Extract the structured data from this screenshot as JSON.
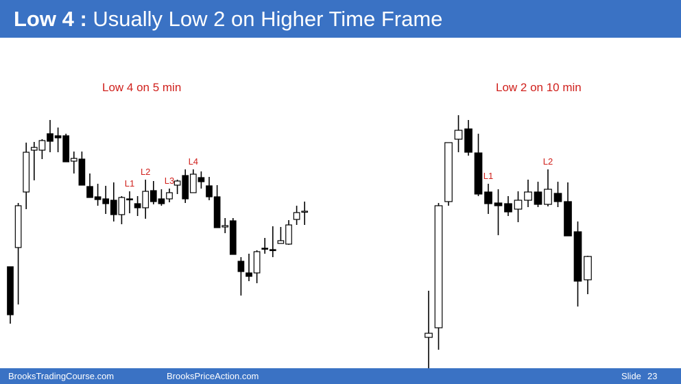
{
  "slide": {
    "title_bold": "Low 4 :",
    "title_rest": "Usually Low 2 on Higher Time Frame",
    "footer_left": "BrooksTradingCourse.com",
    "footer_center": "BrooksPriceAction.com",
    "footer_slide": "Slide",
    "footer_number": "23"
  },
  "colors": {
    "header": "#3a72c4",
    "annotation": "#d0201c",
    "bear_bar": "#000000",
    "bull_bar": "#ffffff"
  },
  "chart_data": [
    {
      "type": "candlestick",
      "title": "Low 4 on 5 min",
      "bars": [
        {
          "o": 389,
          "h": 434,
          "l": 472,
          "c": 459
        },
        {
          "o": 361,
          "h": 296,
          "l": 444,
          "c": 300
        },
        {
          "o": 280,
          "h": 208,
          "l": 305,
          "c": 222
        },
        {
          "o": 219,
          "h": 207,
          "l": 263,
          "c": 215
        },
        {
          "o": 219,
          "h": 203,
          "l": 232,
          "c": 205
        },
        {
          "o": 195,
          "h": 175,
          "l": 222,
          "c": 206
        },
        {
          "o": 198,
          "h": 186,
          "l": 222,
          "c": 201
        },
        {
          "o": 198,
          "h": 195,
          "l": 235,
          "c": 236
        },
        {
          "o": 235,
          "h": 221,
          "l": 253,
          "c": 231
        },
        {
          "o": 232,
          "h": 221,
          "l": 268,
          "c": 270
        },
        {
          "o": 272,
          "h": 253,
          "l": 285,
          "c": 288
        },
        {
          "o": 287,
          "h": 268,
          "l": 300,
          "c": 291
        },
        {
          "o": 290,
          "h": 271,
          "l": 312,
          "c": 297
        },
        {
          "o": 292,
          "h": 266,
          "l": 323,
          "c": 313
        },
        {
          "o": 313,
          "h": 286,
          "l": 327,
          "c": 288
        },
        {
          "o": 290,
          "h": 279,
          "l": 311,
          "c": 291
        },
        {
          "o": 297,
          "h": 286,
          "l": 315,
          "c": 303
        },
        {
          "o": 303,
          "h": 262,
          "l": 319,
          "c": 279
        },
        {
          "o": 278,
          "h": 264,
          "l": 298,
          "c": 294
        },
        {
          "o": 290,
          "h": 276,
          "l": 300,
          "c": 297
        },
        {
          "o": 290,
          "h": 275,
          "l": 295,
          "c": 281
        },
        {
          "o": 270,
          "h": 262,
          "l": 283,
          "c": 264
        },
        {
          "o": 256,
          "h": 247,
          "l": 296,
          "c": 290
        },
        {
          "o": 281,
          "h": 247,
          "l": 281,
          "c": 254
        },
        {
          "o": 259,
          "h": 250,
          "l": 275,
          "c": 265
        },
        {
          "o": 271,
          "h": 258,
          "l": 292,
          "c": 287
        },
        {
          "o": 287,
          "h": 270,
          "l": 316,
          "c": 332
        },
        {
          "o": 331,
          "h": 318,
          "l": 340,
          "c": 329
        },
        {
          "o": 322,
          "h": 318,
          "l": 365,
          "c": 371
        },
        {
          "o": 381,
          "h": 375,
          "l": 431,
          "c": 396
        },
        {
          "o": 398,
          "h": 370,
          "l": 410,
          "c": 403
        },
        {
          "o": 398,
          "h": 365,
          "l": 413,
          "c": 367
        },
        {
          "o": 362,
          "h": 347,
          "l": 370,
          "c": 362
        },
        {
          "o": 364,
          "h": 330,
          "l": 375,
          "c": 364
        },
        {
          "o": 355,
          "h": 331,
          "l": 354,
          "c": 351
        },
        {
          "o": 356,
          "h": 321,
          "l": 357,
          "c": 328
        },
        {
          "o": 320,
          "h": 300,
          "l": 328,
          "c": 310
        },
        {
          "o": 309,
          "h": 294,
          "l": 328,
          "c": 308
        }
      ],
      "labels": [
        {
          "text": "L1",
          "bar": 15
        },
        {
          "text": "L2",
          "bar": 17
        },
        {
          "text": "L3",
          "bar": 20
        },
        {
          "text": "L4",
          "bar": 23
        }
      ]
    },
    {
      "type": "candlestick",
      "title": "Low 2 on 10 min",
      "bars": [
        {
          "o": 492,
          "h": 424,
          "l": 557,
          "c": 486
        },
        {
          "o": 478,
          "h": 296,
          "l": 510,
          "c": 300
        },
        {
          "o": 294,
          "h": 208,
          "l": 300,
          "c": 208
        },
        {
          "o": 203,
          "h": 168,
          "l": 222,
          "c": 190
        },
        {
          "o": 188,
          "h": 175,
          "l": 227,
          "c": 222
        },
        {
          "o": 223,
          "h": 195,
          "l": 286,
          "c": 283
        },
        {
          "o": 280,
          "h": 268,
          "l": 312,
          "c": 297
        },
        {
          "o": 296,
          "h": 276,
          "l": 343,
          "c": 300
        },
        {
          "o": 297,
          "h": 286,
          "l": 315,
          "c": 309
        },
        {
          "o": 305,
          "h": 279,
          "l": 324,
          "c": 292
        },
        {
          "o": 292,
          "h": 262,
          "l": 302,
          "c": 280
        },
        {
          "o": 280,
          "h": 265,
          "l": 302,
          "c": 298
        },
        {
          "o": 298,
          "h": 247,
          "l": 301,
          "c": 276
        },
        {
          "o": 282,
          "h": 265,
          "l": 302,
          "c": 294
        },
        {
          "o": 294,
          "h": 266,
          "l": 327,
          "c": 344
        },
        {
          "o": 338,
          "h": 323,
          "l": 447,
          "c": 410
        },
        {
          "o": 408,
          "h": 373,
          "l": 429,
          "c": 374
        }
      ],
      "labels": [
        {
          "text": "L1",
          "bar": 6
        },
        {
          "text": "L2",
          "bar": 12
        }
      ]
    }
  ]
}
